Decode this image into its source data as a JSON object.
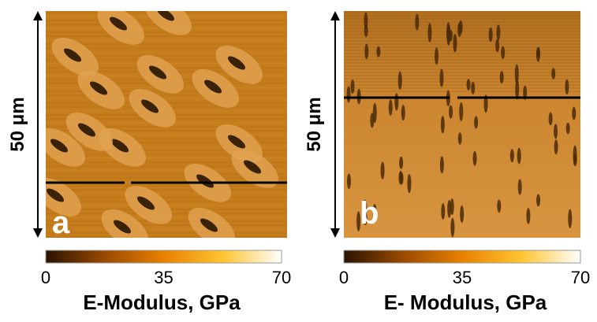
{
  "panels": [
    {
      "label": "a",
      "scale_label": "50 μm",
      "colorbar": {
        "ticks": [
          0,
          35,
          70
        ],
        "title": "E-Modulus, GPa"
      }
    },
    {
      "label": "b",
      "scale_label": "50 μm",
      "colorbar": {
        "ticks": [
          0,
          35,
          70
        ],
        "title": "E- Modulus, GPa"
      }
    }
  ]
}
